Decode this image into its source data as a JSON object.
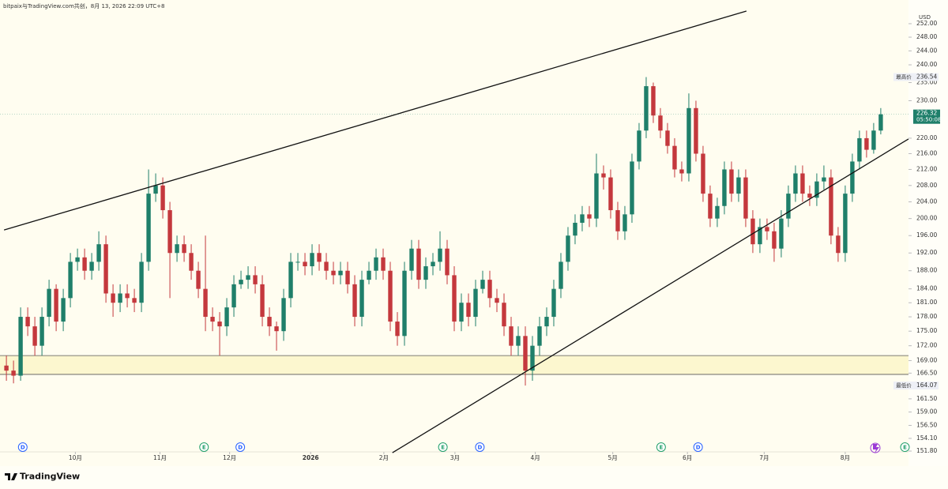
{
  "chart_data": {
    "type": "candlestick",
    "attribution": "bitpaix与TradingView.com共创，8月 13, 2026 22:09 UTC+8",
    "currency": "USD",
    "log_scale": true,
    "up_color": "#1f7f6a",
    "down_color": "#c4383d",
    "open": [
      168,
      167,
      166,
      178,
      176,
      172,
      178,
      184,
      177,
      182,
      190,
      191,
      188,
      190,
      194,
      183,
      181,
      183,
      182,
      181,
      190,
      206,
      208,
      202,
      192,
      194,
      192,
      188,
      184,
      178,
      177,
      176,
      180,
      185,
      186,
      187,
      185,
      178,
      176,
      175,
      182,
      190,
      190,
      189,
      192,
      190,
      188,
      187,
      188,
      185,
      178,
      186,
      188,
      191,
      188,
      177,
      174,
      188,
      193,
      186,
      189,
      190,
      193,
      187,
      177,
      181,
      178,
      184,
      186,
      182,
      181,
      176,
      172,
      174,
      167,
      172,
      176,
      178,
      184,
      190,
      196,
      199,
      201,
      200,
      211,
      210,
      202,
      197,
      201,
      214,
      222,
      234,
      226,
      222,
      218,
      212,
      211,
      228,
      216,
      206,
      200,
      203,
      212,
      206,
      210,
      200,
      194,
      198,
      197,
      193,
      200,
      206,
      211,
      206,
      205,
      209,
      210,
      196,
      192,
      206,
      214,
      220,
      217,
      222
    ],
    "high": [
      170,
      169,
      180,
      180,
      178,
      180,
      186,
      185,
      184,
      192,
      193,
      193,
      192,
      197,
      196,
      185,
      185,
      185,
      184,
      192,
      212,
      211,
      210,
      204,
      196,
      196,
      194,
      190,
      196,
      180,
      179,
      182,
      187,
      188,
      189,
      189,
      187,
      180,
      177,
      184,
      192,
      192,
      192,
      194,
      194,
      192,
      190,
      190,
      190,
      187,
      188,
      190,
      193,
      193,
      190,
      179,
      190,
      195,
      195,
      191,
      192,
      197,
      195,
      189,
      183,
      183,
      186,
      188,
      188,
      184,
      183,
      178,
      176,
      176,
      174,
      178,
      180,
      186,
      192,
      198,
      201,
      203,
      203,
      216,
      213,
      212,
      204,
      203,
      216,
      224,
      236.54,
      235,
      228,
      224,
      220,
      214,
      232,
      230,
      218,
      208,
      205,
      214,
      214,
      212,
      212,
      202,
      200,
      200,
      199,
      202,
      208,
      213,
      213,
      208,
      211,
      213,
      212,
      198,
      208,
      216,
      222,
      222,
      224,
      228
    ],
    "low": [
      165,
      164.5,
      165,
      174,
      170,
      170,
      176,
      175,
      175,
      180,
      188,
      186,
      186,
      188,
      181,
      178,
      179,
      180,
      179,
      179,
      188,
      204,
      200,
      182,
      190,
      190,
      186,
      182,
      175,
      175,
      170,
      174,
      178,
      184,
      184,
      183,
      176,
      174,
      171,
      173,
      180,
      188,
      187,
      187,
      188,
      186,
      185,
      185,
      183,
      176,
      176,
      185,
      186,
      186,
      175,
      172,
      172,
      186,
      184,
      184,
      187,
      188,
      185,
      175,
      175,
      176,
      176,
      183,
      180,
      179,
      174,
      170,
      170,
      164.07,
      165,
      170,
      174,
      176,
      182,
      188,
      194,
      197,
      198,
      198,
      207,
      200,
      195,
      195,
      199,
      212,
      220,
      224,
      220,
      216,
      210,
      209,
      209,
      214,
      204,
      198,
      198,
      201,
      204,
      204,
      198,
      192,
      192,
      195,
      190,
      191,
      198,
      204,
      204,
      203,
      203,
      207,
      194,
      190,
      190,
      204,
      212,
      215,
      216,
      221
    ],
    "close": [
      167,
      166,
      178,
      176,
      172,
      178,
      184,
      177,
      182,
      190,
      191,
      188,
      190,
      194,
      183,
      181,
      183,
      182,
      181,
      190,
      206,
      208,
      202,
      192,
      194,
      192,
      188,
      184,
      178,
      177,
      176,
      180,
      185,
      186,
      187,
      185,
      178,
      176,
      175,
      182,
      190,
      190,
      189,
      192,
      190,
      188,
      187,
      188,
      185,
      178,
      186,
      188,
      191,
      188,
      177,
      174,
      188,
      193,
      186,
      189,
      190,
      193,
      187,
      177,
      181,
      178,
      184,
      186,
      182,
      181,
      176,
      172,
      174,
      167,
      172,
      176,
      178,
      184,
      190,
      196,
      199,
      201,
      200,
      211,
      210,
      202,
      197,
      201,
      214,
      222,
      234,
      226,
      222,
      218,
      212,
      211,
      228,
      216,
      206,
      200,
      203,
      212,
      206,
      210,
      200,
      194,
      198,
      197,
      193,
      200,
      206,
      211,
      206,
      205,
      209,
      210,
      196,
      192,
      206,
      214,
      220,
      217,
      222,
      226.32
    ],
    "xlim": [
      -0.9,
      126.9
    ],
    "xticks": [
      {
        "value": 9.7,
        "label": "10月"
      },
      {
        "value": 21.6,
        "label": "11月"
      },
      {
        "value": 31.4,
        "label": "12月"
      },
      {
        "value": 42.8,
        "label": "2026"
      },
      {
        "value": 53.1,
        "label": "2月"
      },
      {
        "value": 63.1,
        "label": "3月"
      },
      {
        "value": 74.4,
        "label": "4月"
      },
      {
        "value": 85.3,
        "label": "5月"
      },
      {
        "value": 95.8,
        "label": "6月"
      },
      {
        "value": 106.6,
        "label": "7月"
      },
      {
        "value": 118,
        "label": "8月"
      }
    ],
    "ylim": [
      151.8,
      255.8
    ],
    "yticks": [
      {
        "value": 151.8,
        "label": "151.80"
      },
      {
        "value": 154.1,
        "label": "154.10"
      },
      {
        "value": 156.5,
        "label": "156.50"
      },
      {
        "value": 159,
        "label": "159.00"
      },
      {
        "value": 161.5,
        "label": "161.50"
      },
      {
        "value": 166.5,
        "label": "166.50"
      },
      {
        "value": 169,
        "label": "169.00"
      },
      {
        "value": 172,
        "label": "172.00"
      },
      {
        "value": 175,
        "label": "175.00"
      },
      {
        "value": 178,
        "label": "178.00"
      },
      {
        "value": 181,
        "label": "181.00"
      },
      {
        "value": 184,
        "label": "184.00"
      },
      {
        "value": 188,
        "label": "188.00"
      },
      {
        "value": 192,
        "label": "192.00"
      },
      {
        "value": 196,
        "label": "196.00"
      },
      {
        "value": 200,
        "label": "200.00"
      },
      {
        "value": 204,
        "label": "204.00"
      },
      {
        "value": 208,
        "label": "208.00"
      },
      {
        "value": 212,
        "label": "212.00"
      },
      {
        "value": 216,
        "label": "216.00"
      },
      {
        "value": 220,
        "label": "220.00"
      },
      {
        "value": 230,
        "label": "230.00"
      },
      {
        "value": 235,
        "label": "235.00"
      },
      {
        "value": 240,
        "label": "240.00"
      },
      {
        "value": 244,
        "label": "244.00"
      },
      {
        "value": 248,
        "label": "248.00"
      },
      {
        "value": 252,
        "label": "252.00"
      }
    ],
    "trendlines": [
      {
        "x": [
          -0.33,
          104.1
        ],
        "y": [
          197.3,
          255.8
        ]
      },
      {
        "x": [
          54.3,
          126.9
        ],
        "y": [
          151.5,
          219.8
        ]
      }
    ],
    "zone": [
      166.25,
      170.0
    ],
    "events": [
      {
        "x": 2.3,
        "label": "D"
      },
      {
        "x": 27.8,
        "label": "E"
      },
      {
        "x": 32.9,
        "label": "D"
      },
      {
        "x": 61.4,
        "label": "E"
      },
      {
        "x": 66.6,
        "label": "D"
      },
      {
        "x": 92.1,
        "label": "E"
      },
      {
        "x": 97.3,
        "label": "D"
      },
      {
        "x": 126.4,
        "label": "E"
      }
    ],
    "high_label": "最高价",
    "low_label": "最低价",
    "countdown": "05:50:08"
  },
  "footer": {
    "logo": "TradingView"
  }
}
